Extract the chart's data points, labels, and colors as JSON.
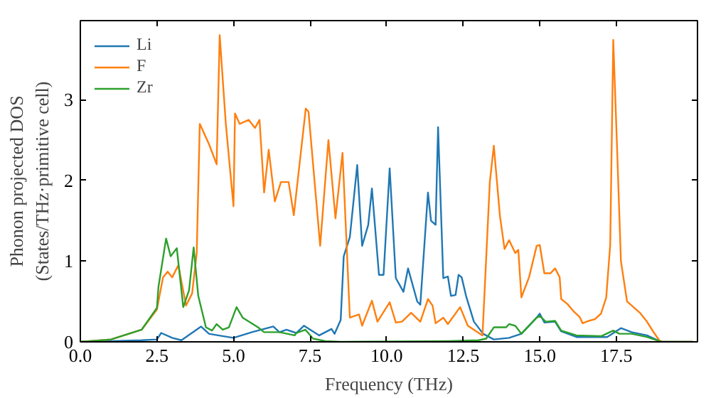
{
  "chart_data": {
    "type": "line",
    "xlabel": "Frequency (THz)",
    "ylabel": "Phonon projected DOS\n(States/THz·primitive cell)",
    "xlim": [
      0,
      20.15
    ],
    "ylim": [
      0,
      3.98
    ],
    "xticks": [
      {
        "value": 0,
        "label": "0.0"
      },
      {
        "value": 2.5,
        "label": "2.5"
      },
      {
        "value": 5,
        "label": "5.0"
      },
      {
        "value": 7.5,
        "label": "7.5"
      },
      {
        "value": 10,
        "label": "10.0"
      },
      {
        "value": 12.5,
        "label": "12.5"
      },
      {
        "value": 15,
        "label": "15.0"
      },
      {
        "value": 17.5,
        "label": "17.5"
      }
    ],
    "yticks": [
      0,
      1,
      2,
      3
    ],
    "grid": false,
    "legend": "top left",
    "series": [
      {
        "name": "Li",
        "color": "#1f77b4",
        "x": [
          0,
          1.0,
          2.0,
          2.5,
          2.64,
          3.0,
          3.3,
          3.94,
          4.2,
          4.5,
          5.0,
          5.6,
          6.3,
          6.5,
          6.73,
          7.05,
          7.3,
          7.8,
          8.2,
          8.3,
          8.5,
          8.6,
          8.8,
          9.04,
          9.2,
          9.4,
          9.52,
          9.75,
          9.9,
          10.1,
          10.3,
          10.55,
          10.7,
          11.0,
          11.1,
          11.35,
          11.45,
          11.6,
          11.68,
          11.85,
          12.0,
          12.1,
          12.25,
          12.35,
          12.45,
          12.6,
          12.85,
          13.15,
          13.5,
          14.0,
          14.4,
          14.9,
          15.0,
          15.15,
          15.5,
          15.7,
          16.2,
          17.2,
          17.65,
          18.0,
          18.5,
          18.9,
          19.0,
          20.0
        ],
        "values": [
          0,
          0.01,
          0.02,
          0.03,
          0.11,
          0.05,
          0.02,
          0.19,
          0.1,
          0.08,
          0.05,
          0.12,
          0.19,
          0.12,
          0.15,
          0.11,
          0.2,
          0.08,
          0.16,
          0.1,
          0.27,
          1.06,
          1.3,
          2.19,
          1.19,
          1.45,
          1.9,
          0.83,
          0.83,
          2.15,
          0.79,
          0.62,
          0.91,
          0.5,
          0.46,
          1.85,
          1.5,
          1.45,
          2.66,
          0.79,
          0.81,
          0.57,
          0.58,
          0.83,
          0.8,
          0.56,
          0.25,
          0.1,
          0.03,
          0.05,
          0.1,
          0.3,
          0.35,
          0.24,
          0.25,
          0.13,
          0.06,
          0.06,
          0.17,
          0.12,
          0.08,
          0.01,
          0,
          0
        ]
      },
      {
        "name": "F",
        "color": "#ff7f0e",
        "x": [
          0,
          1.0,
          2.0,
          2.5,
          2.7,
          2.85,
          3.0,
          3.2,
          3.45,
          3.65,
          3.8,
          3.9,
          4.2,
          4.45,
          4.55,
          4.75,
          5.0,
          5.05,
          5.2,
          5.5,
          5.7,
          5.85,
          6.0,
          6.15,
          6.35,
          6.55,
          6.8,
          6.97,
          7.36,
          7.45,
          7.83,
          8.1,
          8.33,
          8.56,
          8.8,
          9.1,
          9.2,
          9.52,
          9.7,
          10.1,
          10.3,
          10.5,
          10.8,
          11.1,
          11.35,
          11.5,
          11.6,
          11.85,
          12.0,
          12.4,
          12.65,
          13.13,
          13.37,
          13.5,
          13.7,
          13.85,
          14.0,
          14.2,
          14.3,
          14.4,
          14.65,
          14.9,
          15.0,
          15.15,
          15.35,
          15.5,
          15.65,
          15.7,
          15.9,
          16.1,
          16.3,
          16.4,
          16.6,
          16.8,
          17.0,
          17.17,
          17.3,
          17.4,
          17.52,
          17.65,
          17.85,
          18.0,
          18.27,
          18.5,
          18.7,
          18.9,
          19.0,
          20.0
        ],
        "values": [
          0,
          0.03,
          0.15,
          0.4,
          0.8,
          0.87,
          0.8,
          0.95,
          0.45,
          0.6,
          1.1,
          2.7,
          2.45,
          2.2,
          3.8,
          2.7,
          1.68,
          2.83,
          2.7,
          2.75,
          2.65,
          2.75,
          1.85,
          2.38,
          1.74,
          1.98,
          1.98,
          1.57,
          2.89,
          2.85,
          1.19,
          2.5,
          1.53,
          2.34,
          0.3,
          0.34,
          0.2,
          0.51,
          0.25,
          0.49,
          0.24,
          0.25,
          0.36,
          0.25,
          0.53,
          0.45,
          0.23,
          0.3,
          0.22,
          0.43,
          0.2,
          0.08,
          1.98,
          2.43,
          1.56,
          1.15,
          1.26,
          1.1,
          1.14,
          0.55,
          0.8,
          1.19,
          1.2,
          0.85,
          0.85,
          0.91,
          0.8,
          0.53,
          0.47,
          0.38,
          0.31,
          0.23,
          0.26,
          0.28,
          0.35,
          0.55,
          1.2,
          3.74,
          2.45,
          1.0,
          0.5,
          0.45,
          0.36,
          0.25,
          0.13,
          0.02,
          0,
          0
        ]
      },
      {
        "name": "Zr",
        "color": "#2ca02c",
        "x": [
          0,
          1.0,
          2.0,
          2.5,
          2.55,
          2.8,
          2.95,
          3.15,
          3.36,
          3.55,
          3.7,
          3.85,
          4.1,
          4.3,
          4.45,
          4.65,
          4.85,
          5.1,
          5.3,
          5.8,
          6.0,
          6.5,
          7.0,
          7.05,
          7.35,
          7.6,
          8.0,
          8.5,
          12.0,
          13.0,
          13.25,
          13.5,
          13.9,
          14.0,
          14.2,
          14.4,
          14.9,
          15.0,
          15.2,
          15.5,
          15.7,
          16.2,
          17.0,
          17.4,
          17.6,
          18.0,
          18.5,
          18.9,
          19.0,
          20.0
        ],
        "values": [
          0,
          0.03,
          0.15,
          0.42,
          0.68,
          1.28,
          1.06,
          1.16,
          0.43,
          0.64,
          1.17,
          0.57,
          0.18,
          0.14,
          0.22,
          0.15,
          0.18,
          0.43,
          0.3,
          0.18,
          0.12,
          0.12,
          0.08,
          0.11,
          0.15,
          0.04,
          0.01,
          0,
          0.01,
          0.02,
          0.04,
          0.18,
          0.18,
          0.22,
          0.2,
          0.1,
          0.3,
          0.32,
          0.25,
          0.26,
          0.14,
          0.08,
          0.07,
          0.14,
          0.1,
          0.1,
          0.06,
          0.01,
          0,
          0
        ]
      }
    ]
  }
}
